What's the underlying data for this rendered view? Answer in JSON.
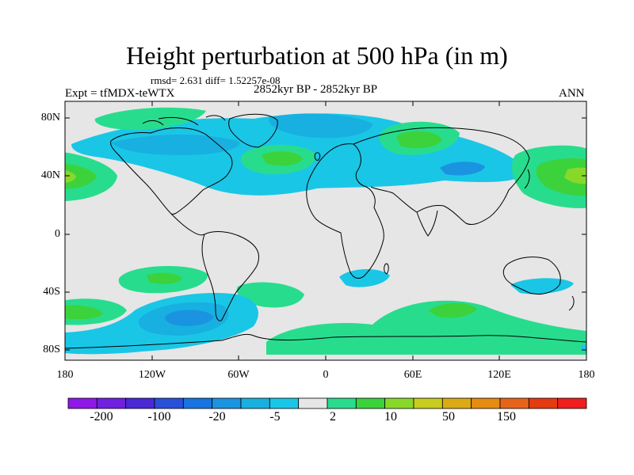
{
  "map": {
    "title": "Height perturbation at 500 hPa (in m)",
    "stats": "rmsd= 2.631 diff= 1.52257e-08",
    "left_label": "Expt = tfMDX-teWTX",
    "center_label": "2852kyr BP - 2852kyr BP",
    "right_label": "ANN",
    "lat_labels": [
      "80N",
      "40N",
      "0",
      "40S",
      "80S"
    ],
    "lon_labels": [
      "180",
      "120W",
      "60W",
      "0",
      "60E",
      "120E",
      "180"
    ],
    "colorbar": {
      "colors": [
        "#8f18e8",
        "#7020e0",
        "#4a28d8",
        "#2850d8",
        "#1874e0",
        "#1a94e0",
        "#18b0e0",
        "#1ac6e6",
        "#e6e6e6",
        "#28dc8e",
        "#3cd23c",
        "#88d82a",
        "#c8cc1e",
        "#dcaa14",
        "#e68c10",
        "#e6641a",
        "#e63a10",
        "#f01e1e"
      ],
      "labels": [
        "-200",
        "-100",
        "-20",
        "-5",
        "2",
        "10",
        "50",
        "150"
      ]
    }
  },
  "colors": {
    "land_background": "#e6e6e6",
    "neg_light": "#1ac6e6",
    "neg_mid": "#18b0e0",
    "neg_strong": "#1a94e0",
    "pos_light": "#28dc8e",
    "pos_mid": "#3cd23c",
    "pos_strong": "#88d82a",
    "pos_peak": "#c8cc1e"
  }
}
